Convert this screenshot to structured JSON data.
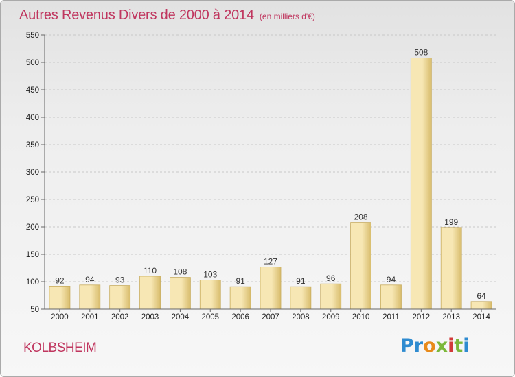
{
  "chart_data": {
    "type": "bar",
    "title": "Autres Revenus Divers de 2000 à 2014",
    "subtitle": "(en milliers d'€)",
    "categories": [
      "2000",
      "2001",
      "2002",
      "2003",
      "2004",
      "2005",
      "2006",
      "2007",
      "2008",
      "2009",
      "2010",
      "2011",
      "2012",
      "2013",
      "2014"
    ],
    "values": [
      92,
      94,
      93,
      110,
      108,
      103,
      91,
      127,
      91,
      96,
      208,
      94,
      508,
      199,
      64
    ],
    "ylim": [
      50,
      550
    ],
    "yticks": [
      50,
      100,
      150,
      200,
      250,
      300,
      350,
      400,
      450,
      500,
      550
    ],
    "grid": true,
    "colors": {
      "bar_light": "#f7e7b4",
      "bar_dark": "#d8bc6c",
      "bar_edge": "#c9ad5f",
      "grid": "#c8c8c8",
      "axis": "#666666",
      "accent": "#c0365f"
    }
  },
  "footer": {
    "place": "KOLBSHEIM",
    "logo_letters": [
      "P",
      "r",
      "o",
      "x",
      "i",
      "t",
      "i"
    ]
  }
}
